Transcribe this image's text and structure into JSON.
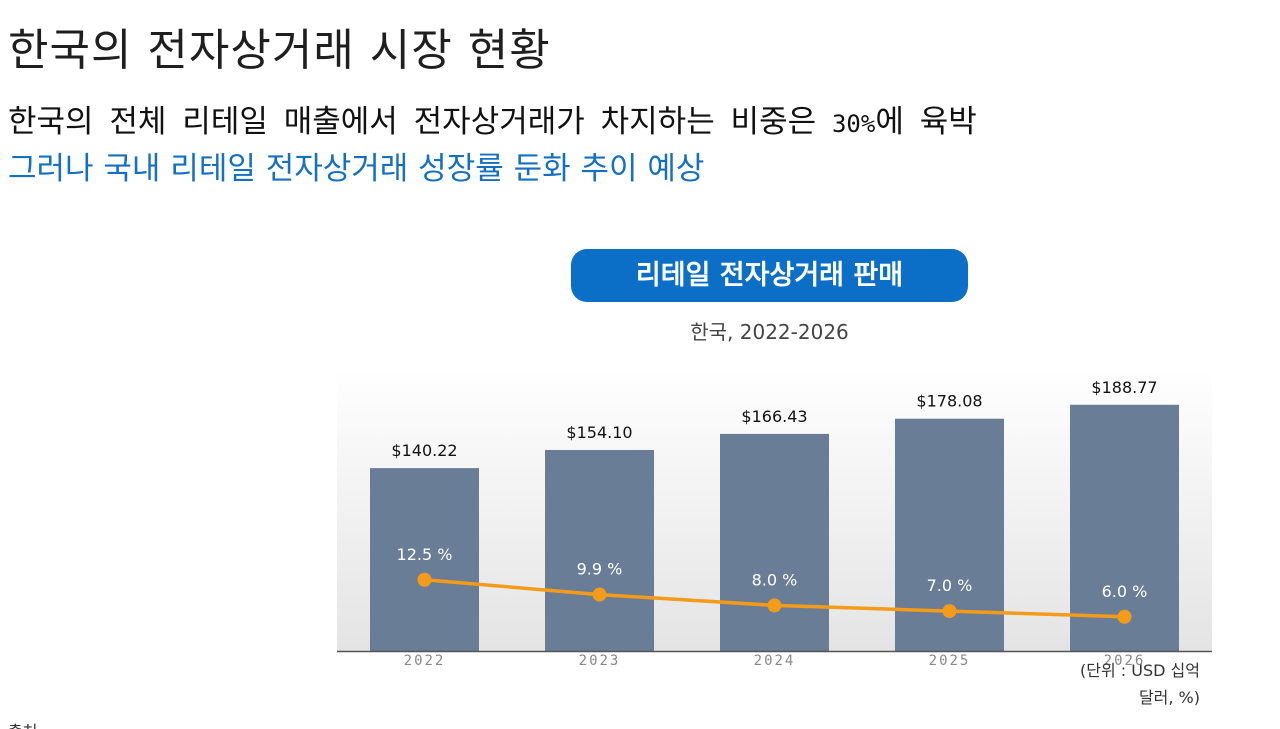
{
  "header": {
    "title": "한국의 전자상거래 시장 현황",
    "line1_text": "한국의 전체 리테일 매출에서 전자상거래가 차지하는 비중은 ",
    "line1_highlight": "30%",
    "line1_suffix": "에 육박",
    "line2": "그러나 국내 리테일 전자상거래 성장률 둔화 추이 예상"
  },
  "chart_data": {
    "type": "bar",
    "title": "리테일 전자상거래 판매",
    "subtitle": "한국, 2022-2026",
    "categories": [
      "2022",
      "2023",
      "2024",
      "2025",
      "2026"
    ],
    "series": [
      {
        "values": [
          140.22,
          154.1,
          166.43,
          178.08,
          188.77
        ],
        "labels": [
          "$140.22",
          "$154.10",
          "$166.43",
          "$178.08",
          "$188.77"
        ],
        "color": "#6a7d96"
      },
      {
        "type": "line",
        "values": [
          12.5,
          9.9,
          8.0,
          7.0,
          6.0
        ],
        "labels": [
          "12.5 %",
          "9.9 %",
          "8.0 %",
          "7.0 %",
          "6.0 %"
        ],
        "color": "#f59b1a"
      }
    ],
    "ylim": [
      0,
      200
    ],
    "line_ylim": [
      0,
      50
    ],
    "unit_label_line1": "(단위 : USD 십억",
    "unit_label_line2": "달러, %)",
    "grid": false,
    "background_gradient": true
  },
  "source": {
    "label": "출처"
  }
}
